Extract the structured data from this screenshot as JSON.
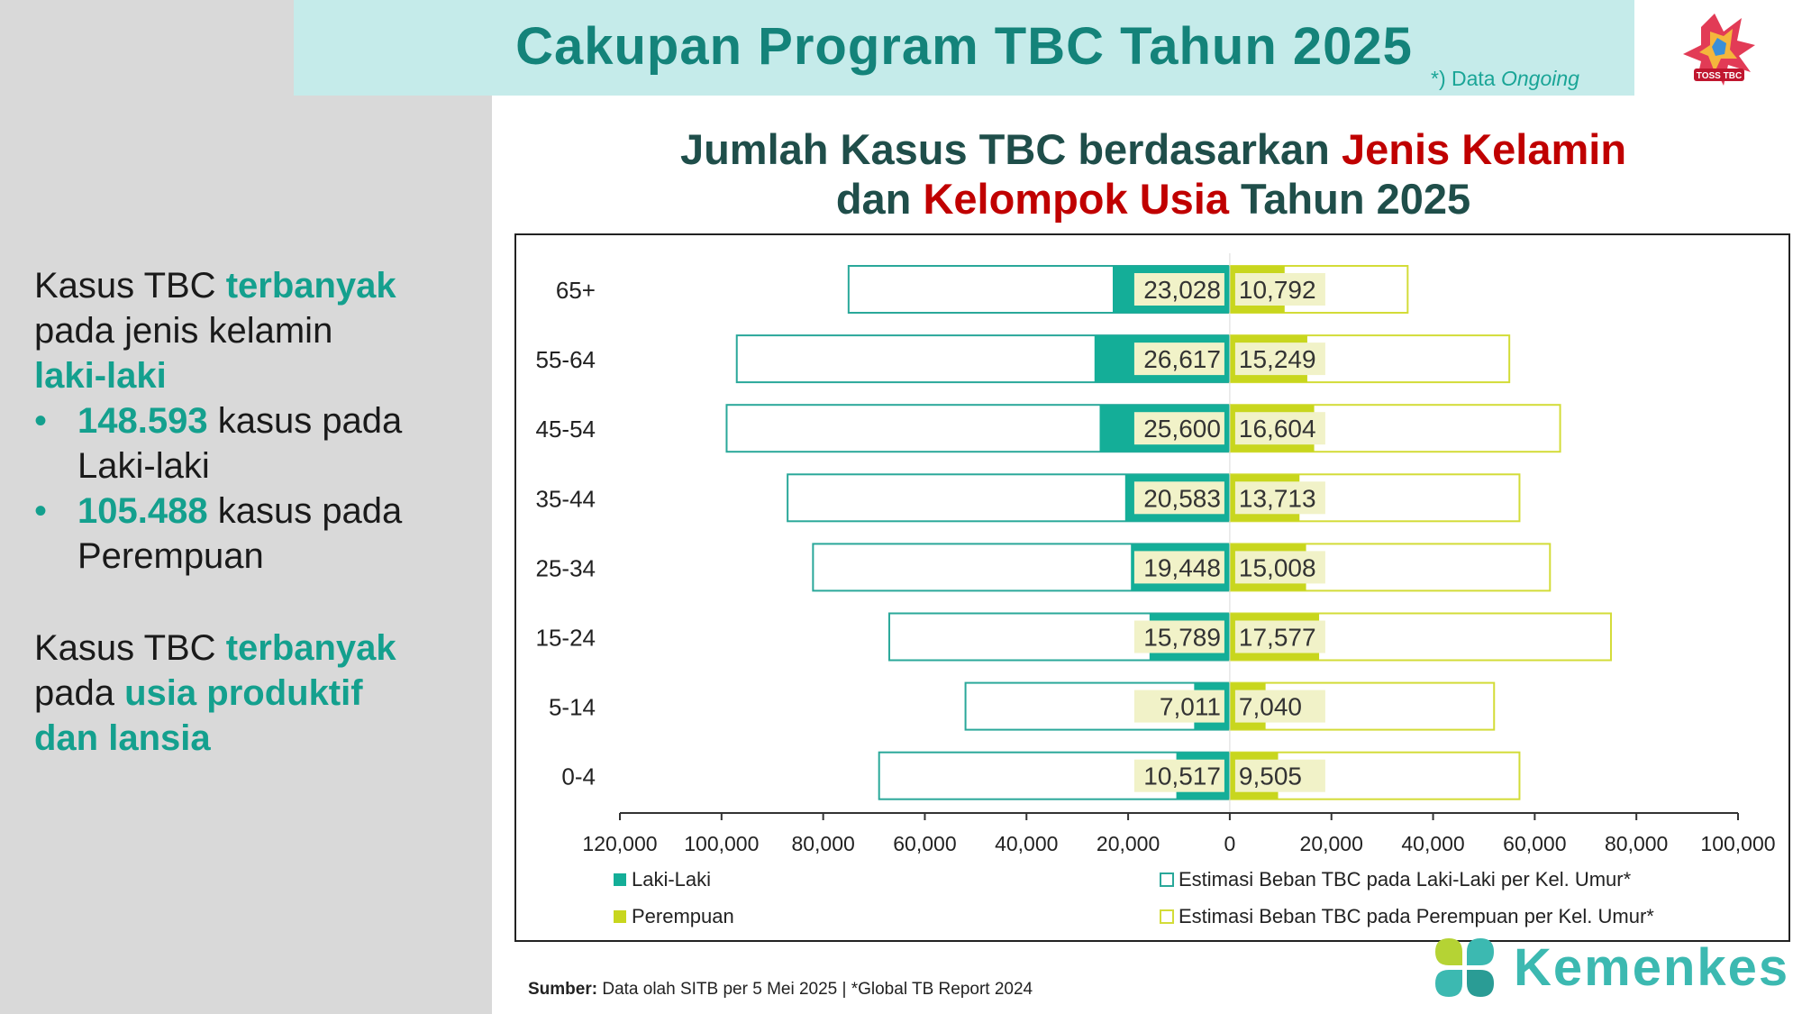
{
  "header": {
    "title": "Cakupan Program TBC Tahun 2025",
    "note_prefix": "*) Data ",
    "note_italic": "Ongoing"
  },
  "chart_title": {
    "line1_a": "Jumlah Kasus TBC berdasarkan ",
    "line1_b": "Jenis Kelamin",
    "line2_a": "dan ",
    "line2_b": "Kelompok Usia",
    "line2_c": " Tahun 2025"
  },
  "left_panel": {
    "block1_a": "Kasus TBC ",
    "block1_b": "terbanyak",
    "block1_c": "pada jenis kelamin",
    "block1_d": "laki-laki",
    "bullet1_num": "148.593",
    "bullet1_text": " kasus pada",
    "bullet1_text2": "Laki-laki",
    "bullet2_num": "105.488",
    "bullet2_text": " kasus pada",
    "bullet2_text2": "Perempuan",
    "bullet_char": "•",
    "block2_a": "Kasus TBC ",
    "block2_b": "terbanyak",
    "block2_c": "pada ",
    "block2_d": "usia produktif",
    "block2_e": "dan lansia"
  },
  "source": {
    "label": "Sumber:",
    "text": " Data olah SITB per 5 Mei 2025  | *Global TB Report 2024"
  },
  "brand": {
    "name": "Kemenkes"
  },
  "colors": {
    "male": "#14ae98",
    "female": "#c8d61e",
    "label_bg": "#f1f2c8",
    "male_est_border": "#2aa89a",
    "female_est_border": "#d3dc38"
  },
  "chart_data": {
    "type": "bar",
    "orientation": "horizontal-population-pyramid",
    "categories": [
      "65+",
      "55-64",
      "45-54",
      "35-44",
      "25-34",
      "15-24",
      "5-14",
      "0-4"
    ],
    "series": [
      {
        "name": "Laki-Laki",
        "side": "left",
        "values": [
          23028,
          26617,
          25600,
          20583,
          19448,
          15789,
          7011,
          10517
        ],
        "labels": [
          "23,028",
          "26,617",
          "25,600",
          "20,583",
          "19,448",
          "15,789",
          "7,011",
          "10,517"
        ]
      },
      {
        "name": "Perempuan",
        "side": "right",
        "values": [
          10792,
          15249,
          16604,
          13713,
          15008,
          17577,
          7040,
          9505
        ],
        "labels": [
          "10,792",
          "15,249",
          "16,604",
          "13,713",
          "15,008",
          "17,577",
          "7,040",
          "9,505"
        ]
      },
      {
        "name": "Estimasi Beban TBC pada Laki-Laki per Kel. Umur*",
        "side": "left",
        "outline": true,
        "values": [
          75000,
          97000,
          99000,
          87000,
          82000,
          67000,
          52000,
          69000
        ]
      },
      {
        "name": "Estimasi Beban TBC pada Perempuan per Kel. Umur*",
        "side": "right",
        "outline": true,
        "values": [
          35000,
          55000,
          65000,
          57000,
          63000,
          75000,
          52000,
          57000
        ]
      }
    ],
    "xlim": [
      -120000,
      100000
    ],
    "xticks": [
      -120000,
      -100000,
      -80000,
      -60000,
      -40000,
      -20000,
      0,
      20000,
      40000,
      60000,
      80000,
      100000
    ],
    "xtick_labels": [
      "120,000",
      "100,000",
      "80,000",
      "60,000",
      "40,000",
      "20,000",
      "0",
      "20,000",
      "40,000",
      "60,000",
      "80,000",
      "100,000"
    ],
    "grid": false,
    "legend_position": "bottom"
  }
}
